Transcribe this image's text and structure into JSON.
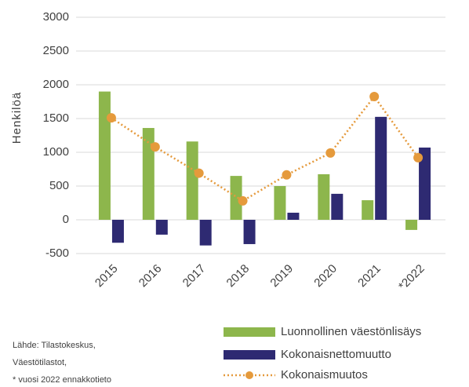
{
  "chart_data": {
    "type": "bar",
    "y_axis_label": "Henkilöä",
    "categories": [
      "2015",
      "2016",
      "2017",
      "2018",
      "2019",
      "2020",
      "2021",
      "*2022"
    ],
    "series": [
      {
        "name": "Luonnollinen väestönlisäys",
        "color": "#8db64c",
        "type": "bar",
        "values": [
          1900,
          1360,
          1160,
          650,
          500,
          675,
          290,
          -150
        ]
      },
      {
        "name": "Kokonaisnettomuutto",
        "color": "#2e2a72",
        "type": "bar",
        "values": [
          -340,
          -220,
          -380,
          -360,
          105,
          385,
          1525,
          1070
        ]
      },
      {
        "name": "Kokonaismuutos",
        "color": "#e59a3c",
        "type": "line",
        "values": [
          1510,
          1080,
          690,
          280,
          665,
          990,
          1825,
          920
        ]
      }
    ],
    "ylim": [
      -500,
      3000
    ],
    "yticks": [
      -500,
      0,
      500,
      1000,
      1500,
      2000,
      2500,
      3000
    ],
    "grid": true,
    "legend": "bottom-right",
    "notes": [
      "Lähde: Tilastokeskus,",
      "Väestötilastot,",
      "* vuosi 2022 ennakkotieto"
    ]
  }
}
